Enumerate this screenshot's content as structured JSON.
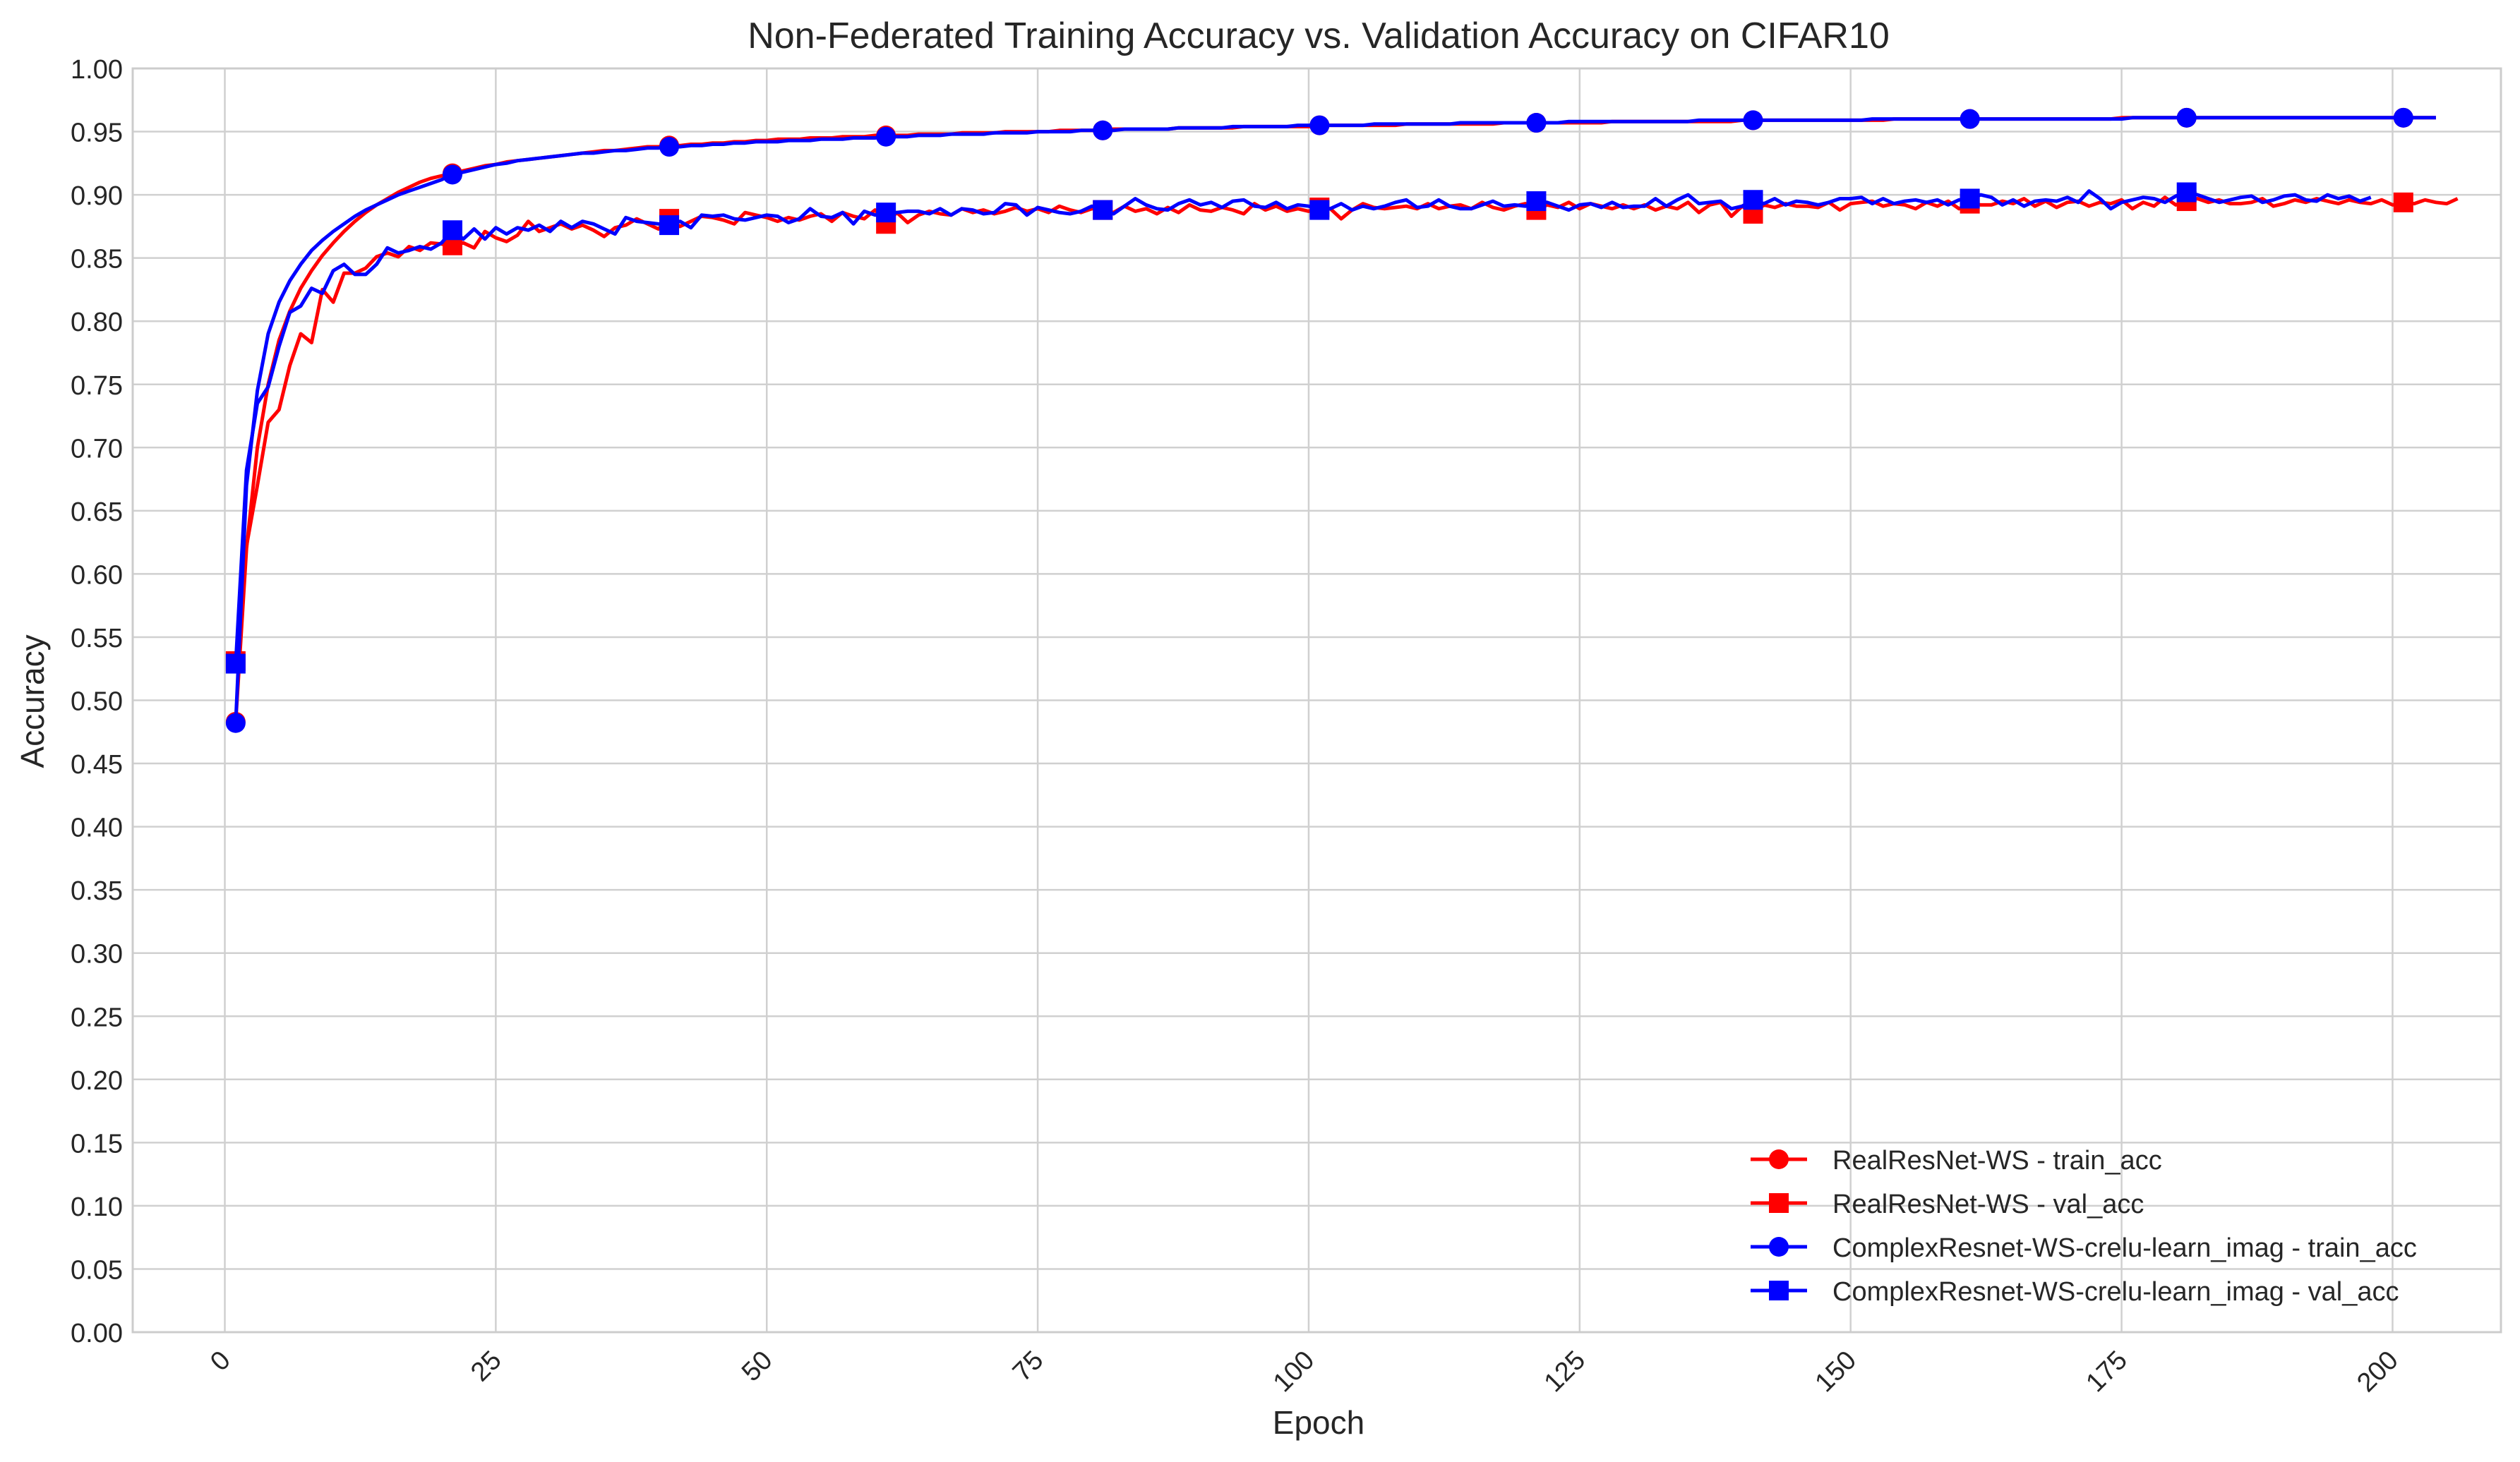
{
  "chart_data": {
    "type": "line",
    "title": "Non-Federated Training Accuracy vs. Validation Accuracy on CIFAR10",
    "xlabel": "Epoch",
    "ylabel": "Accuracy",
    "xlim": [
      -8.5,
      210
    ],
    "ylim": [
      0,
      1
    ],
    "xticks": [
      "0",
      "25",
      "50",
      "75",
      "100",
      "125",
      "150",
      "175",
      "200"
    ],
    "yticks": [
      "0.00",
      "0.05",
      "0.10",
      "0.15",
      "0.20",
      "0.25",
      "0.30",
      "0.35",
      "0.40",
      "0.45",
      "0.50",
      "0.55",
      "0.60",
      "0.65",
      "0.70",
      "0.75",
      "0.80",
      "0.85",
      "0.90",
      "0.95",
      "1.00"
    ],
    "grid": true,
    "legend_position": "lower-right",
    "x_start": 1,
    "marker_every": 20,
    "series": [
      {
        "name": "RealResNet-WS - train_acc",
        "color": "#ff0000",
        "marker": "circle",
        "values": [
          0.483,
          0.62,
          0.7,
          0.75,
          0.785,
          0.808,
          0.826,
          0.84,
          0.852,
          0.862,
          0.871,
          0.879,
          0.886,
          0.892,
          0.897,
          0.902,
          0.906,
          0.91,
          0.913,
          0.915,
          0.917,
          0.919,
          0.921,
          0.923,
          0.924,
          0.926,
          0.927,
          0.928,
          0.929,
          0.93,
          0.931,
          0.932,
          0.933,
          0.934,
          0.935,
          0.935,
          0.936,
          0.937,
          0.938,
          0.938,
          0.939,
          0.939,
          0.94,
          0.94,
          0.941,
          0.941,
          0.942,
          0.942,
          0.943,
          0.943,
          0.944,
          0.944,
          0.944,
          0.945,
          0.945,
          0.945,
          0.946,
          0.946,
          0.946,
          0.947,
          0.947,
          0.947,
          0.947,
          0.948,
          0.948,
          0.948,
          0.948,
          0.949,
          0.949,
          0.949,
          0.949,
          0.95,
          0.95,
          0.95,
          0.95,
          0.95,
          0.951,
          0.951,
          0.951,
          0.951,
          0.951,
          0.952,
          0.952,
          0.952,
          0.952,
          0.952,
          0.952,
          0.953,
          0.953,
          0.953,
          0.953,
          0.953,
          0.953,
          0.954,
          0.954,
          0.954,
          0.954,
          0.954,
          0.954,
          0.954,
          0.955,
          0.955,
          0.955,
          0.955,
          0.955,
          0.955,
          0.955,
          0.955,
          0.956,
          0.956,
          0.956,
          0.956,
          0.956,
          0.956,
          0.956,
          0.956,
          0.956,
          0.957,
          0.957,
          0.957,
          0.957,
          0.957,
          0.957,
          0.957,
          0.957,
          0.957,
          0.957,
          0.958,
          0.958,
          0.958,
          0.958,
          0.958,
          0.958,
          0.958,
          0.958,
          0.958,
          0.958,
          0.958,
          0.958,
          0.959,
          0.959,
          0.959,
          0.959,
          0.959,
          0.959,
          0.959,
          0.959,
          0.959,
          0.959,
          0.959,
          0.959,
          0.959,
          0.959,
          0.96,
          0.96,
          0.96,
          0.96,
          0.96,
          0.96,
          0.96,
          0.96,
          0.96,
          0.96,
          0.96,
          0.96,
          0.96,
          0.96,
          0.96,
          0.96,
          0.96,
          0.96,
          0.96,
          0.96,
          0.96,
          0.961,
          0.961,
          0.961,
          0.961,
          0.961,
          0.961,
          0.961,
          0.961,
          0.961,
          0.961,
          0.961,
          0.961,
          0.961,
          0.961,
          0.961,
          0.961,
          0.961,
          0.961,
          0.961,
          0.961,
          0.961,
          0.961,
          0.961,
          0.961,
          0.961,
          0.961,
          0.961,
          0.961,
          0.961,
          0.961
        ]
      },
      {
        "name": "RealResNet-WS - val_acc",
        "color": "#ff0000",
        "marker": "square",
        "values": [
          0.531,
          0.622,
          0.67,
          0.72,
          0.73,
          0.765,
          0.79,
          0.783,
          0.825,
          0.815,
          0.838,
          0.838,
          0.842,
          0.851,
          0.854,
          0.851,
          0.859,
          0.856,
          0.862,
          0.861,
          0.86,
          0.862,
          0.858,
          0.871,
          0.866,
          0.863,
          0.868,
          0.879,
          0.871,
          0.874,
          0.877,
          0.873,
          0.876,
          0.872,
          0.867,
          0.874,
          0.876,
          0.881,
          0.877,
          0.873,
          0.881,
          0.875,
          0.879,
          0.883,
          0.882,
          0.88,
          0.877,
          0.886,
          0.884,
          0.882,
          0.879,
          0.882,
          0.88,
          0.883,
          0.885,
          0.879,
          0.886,
          0.883,
          0.881,
          0.888,
          0.877,
          0.886,
          0.878,
          0.884,
          0.887,
          0.885,
          0.884,
          0.889,
          0.886,
          0.888,
          0.885,
          0.887,
          0.89,
          0.887,
          0.889,
          0.886,
          0.891,
          0.888,
          0.886,
          0.889,
          0.888,
          0.886,
          0.891,
          0.887,
          0.889,
          0.885,
          0.89,
          0.886,
          0.892,
          0.888,
          0.887,
          0.89,
          0.888,
          0.885,
          0.893,
          0.888,
          0.891,
          0.887,
          0.889,
          0.887,
          0.89,
          0.889,
          0.881,
          0.888,
          0.893,
          0.89,
          0.889,
          0.89,
          0.891,
          0.889,
          0.893,
          0.889,
          0.891,
          0.892,
          0.889,
          0.894,
          0.89,
          0.888,
          0.891,
          0.893,
          0.888,
          0.892,
          0.89,
          0.894,
          0.889,
          0.893,
          0.891,
          0.889,
          0.892,
          0.889,
          0.892,
          0.888,
          0.891,
          0.889,
          0.894,
          0.886,
          0.892,
          0.894,
          0.883,
          0.891,
          0.885,
          0.892,
          0.89,
          0.893,
          0.891,
          0.891,
          0.89,
          0.894,
          0.888,
          0.893,
          0.894,
          0.895,
          0.891,
          0.893,
          0.892,
          0.889,
          0.894,
          0.891,
          0.895,
          0.889,
          0.893,
          0.892,
          0.892,
          0.895,
          0.893,
          0.897,
          0.891,
          0.895,
          0.89,
          0.894,
          0.895,
          0.891,
          0.894,
          0.893,
          0.896,
          0.889,
          0.894,
          0.891,
          0.898,
          0.892,
          0.895,
          0.897,
          0.894,
          0.896,
          0.893,
          0.893,
          0.894,
          0.897,
          0.891,
          0.893,
          0.896,
          0.894,
          0.897,
          0.895,
          0.893,
          0.896,
          0.894,
          0.893,
          0.896,
          0.892,
          0.894,
          0.893,
          0.896,
          0.894,
          0.893,
          0.897
        ]
      },
      {
        "name": "ComplexResnet-WS-crelu-learn_imag - train_acc",
        "color": "#0000ff",
        "marker": "circle",
        "values": [
          0.482,
          0.67,
          0.745,
          0.79,
          0.815,
          0.832,
          0.845,
          0.856,
          0.864,
          0.871,
          0.877,
          0.883,
          0.888,
          0.892,
          0.896,
          0.9,
          0.903,
          0.906,
          0.909,
          0.912,
          0.916,
          0.918,
          0.92,
          0.922,
          0.924,
          0.925,
          0.927,
          0.928,
          0.929,
          0.93,
          0.931,
          0.932,
          0.933,
          0.933,
          0.934,
          0.935,
          0.935,
          0.936,
          0.937,
          0.937,
          0.938,
          0.938,
          0.939,
          0.939,
          0.94,
          0.94,
          0.941,
          0.941,
          0.942,
          0.942,
          0.942,
          0.943,
          0.943,
          0.943,
          0.944,
          0.944,
          0.944,
          0.945,
          0.945,
          0.945,
          0.946,
          0.946,
          0.946,
          0.947,
          0.947,
          0.947,
          0.948,
          0.948,
          0.948,
          0.948,
          0.949,
          0.949,
          0.949,
          0.949,
          0.95,
          0.95,
          0.95,
          0.95,
          0.951,
          0.951,
          0.951,
          0.951,
          0.952,
          0.952,
          0.952,
          0.952,
          0.952,
          0.953,
          0.953,
          0.953,
          0.953,
          0.953,
          0.954,
          0.954,
          0.954,
          0.954,
          0.954,
          0.954,
          0.955,
          0.955,
          0.955,
          0.955,
          0.955,
          0.955,
          0.955,
          0.956,
          0.956,
          0.956,
          0.956,
          0.956,
          0.956,
          0.956,
          0.956,
          0.957,
          0.957,
          0.957,
          0.957,
          0.957,
          0.957,
          0.957,
          0.957,
          0.957,
          0.957,
          0.958,
          0.958,
          0.958,
          0.958,
          0.958,
          0.958,
          0.958,
          0.958,
          0.958,
          0.958,
          0.958,
          0.958,
          0.959,
          0.959,
          0.959,
          0.959,
          0.959,
          0.959,
          0.959,
          0.959,
          0.959,
          0.959,
          0.959,
          0.959,
          0.959,
          0.959,
          0.959,
          0.959,
          0.96,
          0.96,
          0.96,
          0.96,
          0.96,
          0.96,
          0.96,
          0.96,
          0.96,
          0.96,
          0.96,
          0.96,
          0.96,
          0.96,
          0.96,
          0.96,
          0.96,
          0.96,
          0.96,
          0.96,
          0.96,
          0.96,
          0.96,
          0.96,
          0.961,
          0.961,
          0.961,
          0.961,
          0.961,
          0.961,
          0.961,
          0.961,
          0.961,
          0.961,
          0.961,
          0.961,
          0.961,
          0.961,
          0.961,
          0.961,
          0.961,
          0.961,
          0.961,
          0.961,
          0.961,
          0.961,
          0.961,
          0.961,
          0.961,
          0.961,
          0.961,
          0.961,
          0.961
        ]
      },
      {
        "name": "ComplexResnet-WS-crelu-learn_imag - val_acc",
        "color": "#0000ff",
        "marker": "square",
        "values": [
          0.529,
          0.682,
          0.735,
          0.748,
          0.78,
          0.807,
          0.812,
          0.826,
          0.822,
          0.84,
          0.845,
          0.837,
          0.837,
          0.845,
          0.858,
          0.854,
          0.856,
          0.859,
          0.857,
          0.862,
          0.872,
          0.865,
          0.873,
          0.865,
          0.874,
          0.869,
          0.874,
          0.872,
          0.876,
          0.871,
          0.879,
          0.874,
          0.879,
          0.877,
          0.873,
          0.869,
          0.882,
          0.879,
          0.878,
          0.877,
          0.876,
          0.879,
          0.874,
          0.884,
          0.883,
          0.884,
          0.881,
          0.88,
          0.882,
          0.884,
          0.883,
          0.878,
          0.881,
          0.889,
          0.883,
          0.882,
          0.886,
          0.877,
          0.887,
          0.884,
          0.886,
          0.886,
          0.887,
          0.887,
          0.885,
          0.889,
          0.884,
          0.889,
          0.888,
          0.885,
          0.886,
          0.893,
          0.892,
          0.884,
          0.89,
          0.888,
          0.886,
          0.885,
          0.887,
          0.891,
          0.888,
          0.885,
          0.891,
          0.897,
          0.892,
          0.889,
          0.888,
          0.893,
          0.896,
          0.892,
          0.894,
          0.89,
          0.895,
          0.896,
          0.891,
          0.89,
          0.894,
          0.889,
          0.892,
          0.891,
          0.888,
          0.889,
          0.893,
          0.888,
          0.891,
          0.889,
          0.891,
          0.894,
          0.896,
          0.89,
          0.891,
          0.896,
          0.891,
          0.889,
          0.889,
          0.892,
          0.895,
          0.891,
          0.892,
          0.891,
          0.895,
          0.894,
          0.891,
          0.888,
          0.892,
          0.893,
          0.89,
          0.894,
          0.89,
          0.891,
          0.891,
          0.897,
          0.891,
          0.896,
          0.9,
          0.893,
          0.894,
          0.895,
          0.889,
          0.891,
          0.896,
          0.893,
          0.897,
          0.892,
          0.895,
          0.894,
          0.892,
          0.894,
          0.897,
          0.897,
          0.898,
          0.893,
          0.897,
          0.893,
          0.895,
          0.896,
          0.894,
          0.896,
          0.892,
          0.896,
          0.897,
          0.9,
          0.898,
          0.892,
          0.896,
          0.891,
          0.895,
          0.896,
          0.895,
          0.898,
          0.894,
          0.903,
          0.897,
          0.889,
          0.894,
          0.896,
          0.898,
          0.897,
          0.894,
          0.899,
          0.902,
          0.9,
          0.897,
          0.894,
          0.896,
          0.898,
          0.899,
          0.894,
          0.896,
          0.899,
          0.9,
          0.896,
          0.895,
          0.9,
          0.897,
          0.899,
          0.895,
          0.898
        ]
      }
    ]
  }
}
